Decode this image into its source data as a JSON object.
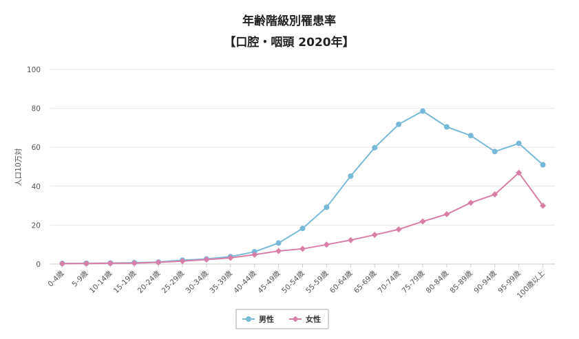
{
  "colors": {
    "male": "#78b8d8",
    "female": "#d97fa7",
    "grid": "#e6e6e6",
    "axis": "#cccccc"
  },
  "chart_data": {
    "type": "line",
    "title": "年齢階級別罹患率",
    "subtitle": "【口腔・咽頭 2020年】",
    "ylabel": "人口10万対",
    "xlabel": "",
    "ylim": [
      0,
      100
    ],
    "yticks": [
      0,
      20,
      40,
      60,
      80,
      100
    ],
    "grid": true,
    "legend": "bottom-center",
    "categories": [
      "0-4歳",
      "5-9歳",
      "10-14歳",
      "15-19歳",
      "20-24歳",
      "25-29歳",
      "30-34歳",
      "35-39歳",
      "40-44歳",
      "45-49歳",
      "50-54歳",
      "55-59歳",
      "60-64歳",
      "65-69歳",
      "70-74歳",
      "75-79歳",
      "80-84歳",
      "85-89歳",
      "90-94歳",
      "95-99歳",
      "100歳以上"
    ],
    "series": [
      {
        "name": "男性",
        "color": "#78b8d8",
        "marker": "circle",
        "values": [
          0.3,
          0.4,
          0.5,
          0.7,
          1.0,
          2.0,
          2.6,
          3.8,
          6.3,
          10.8,
          18.3,
          29.2,
          45.2,
          59.8,
          71.8,
          78.6,
          70.5,
          66.0,
          57.8,
          62.0,
          51.0
        ]
      },
      {
        "name": "女性",
        "color": "#d97fa7",
        "marker": "diamond",
        "values": [
          0.2,
          0.3,
          0.4,
          0.5,
          0.9,
          1.5,
          2.3,
          3.2,
          4.8,
          6.7,
          7.8,
          10.0,
          12.3,
          15.0,
          17.8,
          21.9,
          25.6,
          31.5,
          35.8,
          46.9,
          30.0
        ]
      }
    ]
  }
}
